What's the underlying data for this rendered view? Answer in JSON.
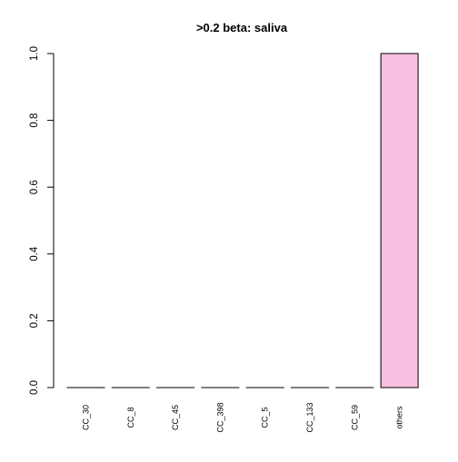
{
  "chart_data": {
    "type": "bar",
    "title": ">0.2 beta:  saliva",
    "xlabel": "",
    "ylabel": "",
    "categories": [
      "CC_30",
      "CC_8",
      "CC_45",
      "CC_398",
      "CC_5",
      "CC_133",
      "CC_59",
      "others"
    ],
    "values": [
      0,
      0,
      0,
      0,
      0,
      0,
      0,
      1.0
    ],
    "ylim": [
      0,
      1.0
    ],
    "yticks": [
      "0.0",
      "0.2",
      "0.4",
      "0.6",
      "0.8",
      "1.0"
    ],
    "bar_color": "#f7bfe0",
    "bar_stroke": "#000000",
    "grid": false,
    "legend": "none"
  }
}
